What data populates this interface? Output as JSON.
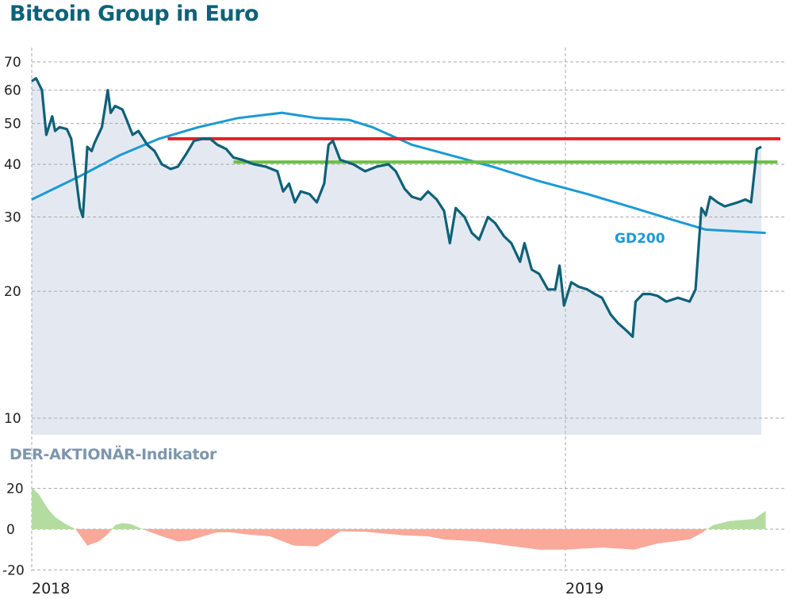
{
  "chart_data": [
    {
      "type": "line",
      "title": "Bitcoin Group in Euro",
      "y_scale": "log",
      "ylim": [
        9,
        75
      ],
      "yticks": [
        10,
        20,
        30,
        40,
        50,
        60,
        70
      ],
      "x_unit": "days since 2018-01-01",
      "xlim": [
        0,
        502
      ],
      "xticks": [
        {
          "day": 0,
          "label": "2018"
        },
        {
          "day": 365,
          "label": "2019"
        }
      ],
      "colors": {
        "price": "#0f6178",
        "area": "#e4e9f1",
        "gd200": "#1a9ad6",
        "resistance": "#e3202a",
        "support": "#6cbd45"
      },
      "series": [
        {
          "name": "Kurs",
          "points": [
            [
              0,
              63
            ],
            [
              3,
              64
            ],
            [
              7,
              60
            ],
            [
              10,
              47
            ],
            [
              14,
              52
            ],
            [
              16,
              48
            ],
            [
              19,
              49
            ],
            [
              24,
              48.5
            ],
            [
              27,
              46
            ],
            [
              30,
              38
            ],
            [
              33,
              31.5
            ],
            [
              35,
              30
            ],
            [
              38,
              44
            ],
            [
              41,
              43
            ],
            [
              43,
              45
            ],
            [
              48,
              49
            ],
            [
              52,
              60
            ],
            [
              54,
              53
            ],
            [
              57,
              55
            ],
            [
              62,
              54
            ],
            [
              65,
              51
            ],
            [
              69,
              47
            ],
            [
              73,
              48
            ],
            [
              79,
              44.5
            ],
            [
              84,
              43
            ],
            [
              89,
              40
            ],
            [
              95,
              39
            ],
            [
              100,
              39.5
            ],
            [
              106,
              42.5
            ],
            [
              111,
              45.5
            ],
            [
              117,
              46
            ],
            [
              122,
              46
            ],
            [
              127,
              44.5
            ],
            [
              133,
              43.5
            ],
            [
              138,
              41.5
            ],
            [
              144,
              41
            ],
            [
              152,
              40
            ],
            [
              160,
              39.5
            ],
            [
              168,
              38.5
            ],
            [
              172,
              34.5
            ],
            [
              176,
              36
            ],
            [
              180,
              32.5
            ],
            [
              184,
              34.5
            ],
            [
              190,
              34
            ],
            [
              195,
              32.5
            ],
            [
              200,
              36
            ],
            [
              203,
              44.5
            ],
            [
              206,
              45.5
            ],
            [
              211,
              41
            ],
            [
              220,
              40
            ],
            [
              228,
              38.5
            ],
            [
              236,
              39.5
            ],
            [
              244,
              40
            ],
            [
              249,
              38.5
            ],
            [
              255,
              35
            ],
            [
              260,
              33.5
            ],
            [
              266,
              33
            ],
            [
              271,
              34.5
            ],
            [
              277,
              33
            ],
            [
              282,
              31
            ],
            [
              286,
              26
            ],
            [
              290,
              31.5
            ],
            [
              296,
              30
            ],
            [
              301,
              27.5
            ],
            [
              306,
              26.5
            ],
            [
              312,
              30
            ],
            [
              317,
              29
            ],
            [
              323,
              27
            ],
            [
              328,
              26
            ],
            [
              334,
              23.5
            ],
            [
              337,
              26
            ],
            [
              342,
              22.5
            ],
            [
              347,
              22
            ],
            [
              353,
              20.2
            ],
            [
              358,
              20.2
            ],
            [
              361,
              23
            ],
            [
              364,
              18.5
            ],
            [
              369,
              21
            ],
            [
              374,
              20.5
            ],
            [
              380,
              20.2
            ],
            [
              385,
              19.7
            ],
            [
              390,
              19.3
            ],
            [
              396,
              17.6
            ],
            [
              401,
              16.8
            ],
            [
              407,
              16.1
            ],
            [
              411,
              15.6
            ],
            [
              413,
              18.9
            ],
            [
              418,
              19.7
            ],
            [
              423,
              19.7
            ],
            [
              428,
              19.5
            ],
            [
              434,
              18.9
            ],
            [
              442,
              19.3
            ],
            [
              450,
              18.9
            ],
            [
              454,
              20.2
            ],
            [
              458,
              31.5
            ],
            [
              461,
              30.3
            ],
            [
              464,
              33.5
            ],
            [
              469,
              32.5
            ],
            [
              474,
              31.8
            ],
            [
              483,
              32.5
            ],
            [
              488,
              33
            ],
            [
              492,
              32.5
            ],
            [
              496,
              43.5
            ],
            [
              499,
              44
            ]
          ]
        },
        {
          "name": "GD200",
          "label": "GD200",
          "points": [
            [
              0,
              33
            ],
            [
              33,
              37.5
            ],
            [
              60,
              42
            ],
            [
              87,
              46
            ],
            [
              114,
              49
            ],
            [
              141,
              51.5
            ],
            [
              171,
              53
            ],
            [
              195,
              51.5
            ],
            [
              217,
              51
            ],
            [
              233,
              49
            ],
            [
              260,
              44.5
            ],
            [
              287,
              42
            ],
            [
              315,
              39.5
            ],
            [
              347,
              36.5
            ],
            [
              380,
              34
            ],
            [
              412,
              31.5
            ],
            [
              439,
              29.5
            ],
            [
              461,
              28
            ],
            [
              502,
              27.5
            ]
          ]
        }
      ],
      "horizontal_lines": [
        {
          "name": "resistance",
          "value": 46,
          "from_day": 93,
          "to_day": 512
        },
        {
          "name": "support",
          "value": 40.5,
          "from_day": 138,
          "to_day": 510
        }
      ]
    },
    {
      "type": "area",
      "title": "DER-AKTIONÄR-Indikator",
      "ylim": [
        -20,
        20
      ],
      "yticks": [
        -20,
        0,
        20
      ],
      "x_unit": "days since 2018-01-01",
      "xlim": [
        0,
        502
      ],
      "xticks": [
        {
          "day": 0,
          "label": "2018"
        },
        {
          "day": 365,
          "label": "2019"
        }
      ],
      "colors": {
        "positive": "#b5dca0",
        "negative": "#f9a899"
      },
      "points": [
        [
          0,
          20.5
        ],
        [
          5,
          17
        ],
        [
          11,
          10
        ],
        [
          16,
          6
        ],
        [
          22,
          3
        ],
        [
          30,
          0
        ],
        [
          38,
          -8
        ],
        [
          46,
          -6
        ],
        [
          52,
          -2.5
        ],
        [
          57,
          2
        ],
        [
          62,
          3
        ],
        [
          68,
          2.5
        ],
        [
          76,
          0
        ],
        [
          87,
          -3
        ],
        [
          100,
          -6
        ],
        [
          108,
          -5.5
        ],
        [
          117,
          -3.5
        ],
        [
          127,
          -1.5
        ],
        [
          136,
          -1.5
        ],
        [
          146,
          -2.5
        ],
        [
          163,
          -3.5
        ],
        [
          179,
          -8
        ],
        [
          195,
          -8.5
        ],
        [
          203,
          -5
        ],
        [
          211,
          -1
        ],
        [
          228,
          -1.3
        ],
        [
          239,
          -2
        ],
        [
          255,
          -3
        ],
        [
          271,
          -3.5
        ],
        [
          282,
          -5
        ],
        [
          304,
          -6
        ],
        [
          320,
          -7.5
        ],
        [
          347,
          -10
        ],
        [
          365,
          -10
        ],
        [
          390,
          -9
        ],
        [
          412,
          -10
        ],
        [
          428,
          -7
        ],
        [
          450,
          -5
        ],
        [
          458,
          -2
        ],
        [
          466,
          2
        ],
        [
          477,
          4
        ],
        [
          494,
          5
        ],
        [
          502,
          9
        ]
      ]
    }
  ]
}
